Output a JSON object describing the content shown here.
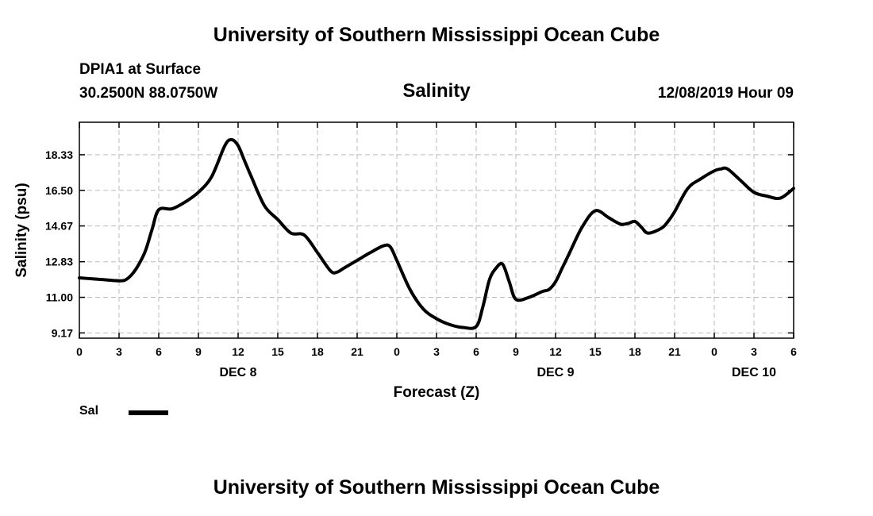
{
  "header": {
    "title": "University of Southern Mississippi Ocean Cube",
    "station": "DPIA1 at Surface",
    "coords": "30.2500N 88.0750W",
    "variable": "Salinity",
    "datetime": "12/08/2019 Hour 09"
  },
  "footer": {
    "title": "University of Southern Mississippi Ocean Cube"
  },
  "chart_data": {
    "type": "line",
    "xlabel": "Forecast (Z)",
    "ylabel": "Salinity (psu)",
    "x_unit": "hours from Dec 8 00Z",
    "xlim": [
      0,
      54
    ],
    "ylim": [
      8.9,
      20.0
    ],
    "yticks": [
      9.17,
      11.0,
      12.83,
      14.67,
      16.5,
      18.33
    ],
    "ytick_labels": [
      "9.17",
      "11.00",
      "12.83",
      "14.67",
      "16.50",
      "18.33"
    ],
    "xticks": [
      0,
      3,
      6,
      9,
      12,
      15,
      18,
      21,
      24,
      27,
      30,
      33,
      36,
      39,
      42,
      45,
      48,
      51,
      54
    ],
    "xtick_labels": [
      "0",
      "3",
      "6",
      "9",
      "12",
      "15",
      "18",
      "21",
      "0",
      "3",
      "6",
      "9",
      "12",
      "15",
      "18",
      "21",
      "0",
      "3",
      "6"
    ],
    "date_labels": [
      {
        "x": 12,
        "label": "DEC 8"
      },
      {
        "x": 36,
        "label": "DEC 9"
      },
      {
        "x": 51,
        "label": "DEC 10"
      }
    ],
    "grid": true,
    "legend": "bottom-left",
    "series": [
      {
        "name": "Sal",
        "x": [
          0,
          1,
          2,
          3,
          3.5,
          4,
          4.5,
          5,
          5.5,
          6,
          7,
          8,
          9,
          10,
          11,
          11.5,
          12,
          12.5,
          13,
          14,
          15,
          16,
          17,
          18,
          19,
          19.5,
          20,
          21,
          22,
          23,
          23.5,
          24,
          25,
          26,
          27,
          28,
          29,
          30,
          30.5,
          31,
          31.5,
          32,
          32.5,
          33,
          34,
          35,
          35.5,
          36,
          36.5,
          37,
          38,
          39,
          40,
          40.5,
          41,
          41.5,
          42,
          42.5,
          43,
          44,
          44.5,
          45,
          46,
          47,
          48,
          48.5,
          49,
          50,
          51,
          52,
          53,
          54
        ],
        "values": [
          12.0,
          11.95,
          11.9,
          11.85,
          11.9,
          12.2,
          12.7,
          13.4,
          14.5,
          15.5,
          15.55,
          15.9,
          16.4,
          17.2,
          18.8,
          19.1,
          18.8,
          18.0,
          17.2,
          15.7,
          15.0,
          14.3,
          14.2,
          13.3,
          12.35,
          12.3,
          12.5,
          12.9,
          13.3,
          13.65,
          13.6,
          12.9,
          11.4,
          10.4,
          9.9,
          9.6,
          9.45,
          9.5,
          10.5,
          11.9,
          12.5,
          12.7,
          11.8,
          10.9,
          11.0,
          11.3,
          11.4,
          11.8,
          12.5,
          13.2,
          14.6,
          15.45,
          15.1,
          14.9,
          14.75,
          14.8,
          14.9,
          14.6,
          14.3,
          14.55,
          14.9,
          15.4,
          16.6,
          17.1,
          17.5,
          17.6,
          17.6,
          17.0,
          16.4,
          16.2,
          16.1,
          16.6
        ]
      }
    ]
  }
}
